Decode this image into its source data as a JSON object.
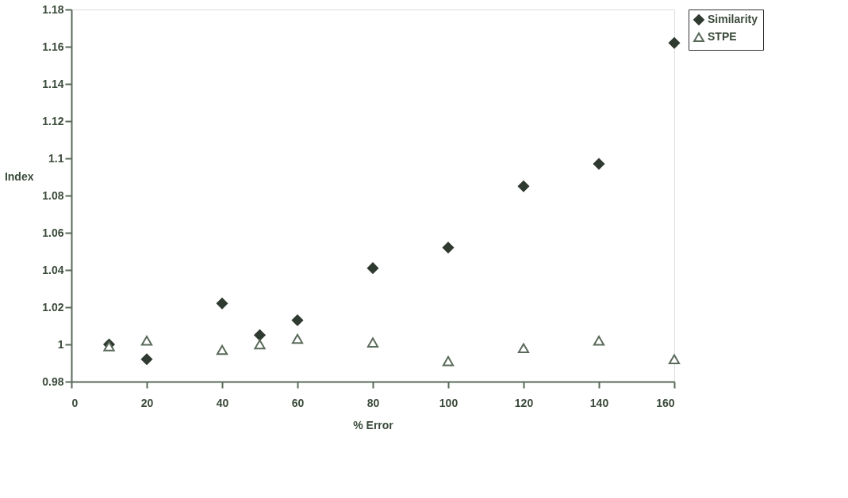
{
  "chart_data": {
    "type": "scatter",
    "xlabel": "% Error",
    "ylabel": "Index",
    "x": [
      10,
      20,
      40,
      50,
      60,
      80,
      100,
      120,
      140,
      160
    ],
    "series": [
      {
        "name": "Similarity",
        "color": "#2f3a30",
        "marker": "diamond",
        "values": [
          1.0,
          0.992,
          1.022,
          1.005,
          1.013,
          1.041,
          1.052,
          1.085,
          1.097,
          1.162
        ]
      },
      {
        "name": "STPE",
        "color": "#5a6a5a",
        "marker": "triangle",
        "values": [
          0.999,
          1.002,
          0.997,
          1.0,
          1.003,
          1.001,
          0.991,
          0.998,
          1.002,
          0.992
        ]
      }
    ],
    "xlim": [
      0,
      160
    ],
    "xticks": [
      0,
      20,
      40,
      60,
      80,
      100,
      120,
      140,
      160
    ],
    "ylim": [
      0.98,
      1.18
    ],
    "yticks": [
      0.98,
      1,
      1.02,
      1.04,
      1.06,
      1.08,
      1.1,
      1.12,
      1.14,
      1.16,
      1.18
    ],
    "grid": false,
    "legend": "right"
  }
}
